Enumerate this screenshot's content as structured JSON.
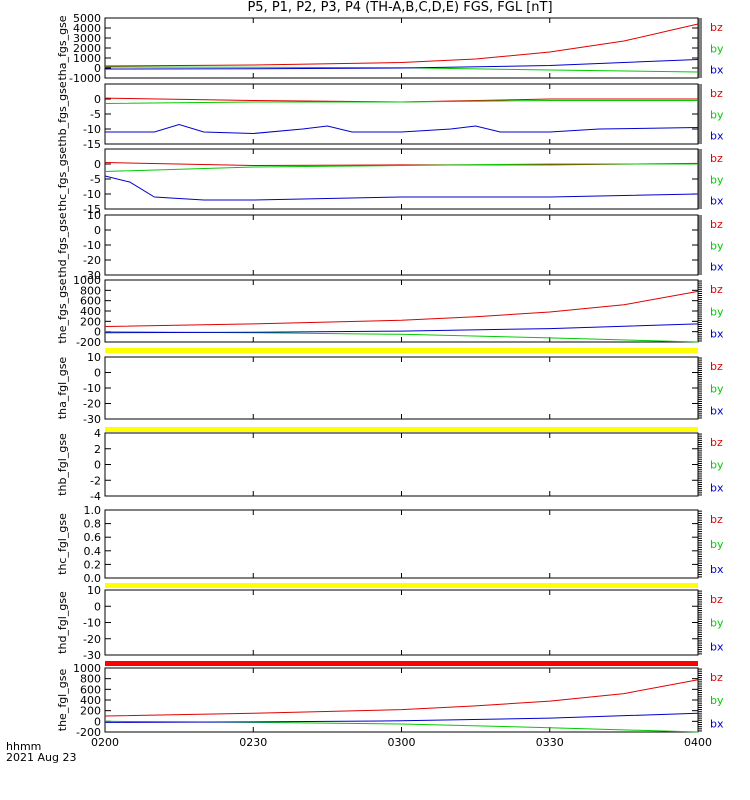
{
  "title": "P5, P1, P2, P3, P4 (TH-A,B,C,D,E) FGS, FGL [nT]",
  "x_unit_label": "hhmm",
  "date_label": "2021 Aug 23",
  "colors": {
    "bz": "#e00000",
    "by": "#00cc00",
    "bx": "#0000cc",
    "flag_yellow": "#ffff00",
    "flag_red": "#ff0000"
  },
  "chart_data": {
    "type": "line",
    "x_range": [
      "0200",
      "0400"
    ],
    "x_ticks": [
      "0200",
      "0230",
      "0300",
      "0330",
      "0400"
    ],
    "panels": [
      {
        "ylabel": "tha_fgs_gse",
        "ylim": [
          -1000,
          5000
        ],
        "yticks": [
          "-1000",
          "0",
          "1000",
          "2000",
          "3000",
          "4000",
          "5000"
        ],
        "series": [
          {
            "name": "bz",
            "x": [
              "0200",
              "0230",
              "0300",
              "0315",
              "0330",
              "0345",
              "0400"
            ],
            "y": [
              200,
              300,
              550,
              900,
              1600,
              2700,
              4400
            ]
          },
          {
            "name": "by",
            "x": [
              "0200",
              "0230",
              "0300",
              "0330",
              "0400"
            ],
            "y": [
              100,
              80,
              20,
              -200,
              -400
            ]
          },
          {
            "name": "bx",
            "x": [
              "0200",
              "0230",
              "0300",
              "0330",
              "0400"
            ],
            "y": [
              -100,
              -80,
              0,
              250,
              850
            ]
          }
        ]
      },
      {
        "ylabel": "thb_fgs_gse",
        "ylim": [
          -15,
          5
        ],
        "yticks": [
          "-15",
          "-10",
          "-5",
          "0"
        ],
        "series": [
          {
            "name": "bz",
            "x": [
              "0200",
              "0230",
              "0300",
              "0330",
              "0400"
            ],
            "y": [
              0.3,
              -0.5,
              -1,
              0,
              0
            ]
          },
          {
            "name": "by",
            "x": [
              "0200",
              "0230",
              "0300",
              "0330",
              "0400"
            ],
            "y": [
              -1.5,
              -1,
              -1,
              -0.5,
              -0.5
            ]
          },
          {
            "name": "bx",
            "x": [
              "0200",
              "0210",
              "0215",
              "0220",
              "0230",
              "0240",
              "0245",
              "0250",
              "0300",
              "0310",
              "0315",
              "0320",
              "0330",
              "0340",
              "0400"
            ],
            "y": [
              -11,
              -11,
              -8.5,
              -11,
              -11.5,
              -10,
              -9,
              -11,
              -11,
              -10,
              -9,
              -11,
              -11,
              -10,
              -9.5
            ]
          }
        ]
      },
      {
        "ylabel": "thc_fgs_gse",
        "ylim": [
          -15,
          5
        ],
        "yticks": [
          "-15",
          "-10",
          "-5",
          "0"
        ],
        "series": [
          {
            "name": "bz",
            "x": [
              "0200",
              "0230",
              "0300",
              "0330",
              "0400"
            ],
            "y": [
              0.5,
              -0.5,
              -0.3,
              -0.3,
              0.2
            ]
          },
          {
            "name": "by",
            "x": [
              "0200",
              "0230",
              "0300",
              "0330",
              "0400"
            ],
            "y": [
              -2.5,
              -1,
              -0.5,
              0,
              0
            ]
          },
          {
            "name": "bx",
            "x": [
              "0200",
              "0205",
              "0210",
              "0220",
              "0230",
              "0300",
              "0330",
              "0400"
            ],
            "y": [
              -4,
              -6,
              -11,
              -12,
              -12,
              -11,
              -11,
              -10
            ]
          }
        ]
      },
      {
        "ylabel": "thd_fgs_gse",
        "ylim": [
          -30,
          10
        ],
        "yticks": [
          "-30",
          "-20",
          "-10",
          "0",
          "10"
        ],
        "series": []
      },
      {
        "ylabel": "the_fgs_gse",
        "ylim": [
          -200,
          1000
        ],
        "yticks": [
          "-200",
          "0",
          "200",
          "400",
          "600",
          "800",
          "1000"
        ],
        "series": [
          {
            "name": "bz",
            "x": [
              "0200",
              "0230",
              "0300",
              "0315",
              "0330",
              "0345",
              "0400"
            ],
            "y": [
              100,
              150,
              220,
              290,
              380,
              520,
              780
            ]
          },
          {
            "name": "by",
            "x": [
              "0200",
              "0230",
              "0300",
              "0330",
              "0400"
            ],
            "y": [
              0,
              -20,
              -50,
              -120,
              -200
            ]
          },
          {
            "name": "bx",
            "x": [
              "0200",
              "0230",
              "0300",
              "0330",
              "0400"
            ],
            "y": [
              -20,
              -10,
              10,
              60,
              150
            ]
          }
        ]
      },
      {
        "ylabel": "tha_fgl_gse",
        "ylim": [
          -30,
          10
        ],
        "yticks": [
          "-30",
          "-20",
          "-10",
          "0",
          "10"
        ],
        "series": []
      },
      {
        "ylabel": "thb_fgl_gse",
        "ylim": [
          -4,
          4
        ],
        "yticks": [
          "-4",
          "-2",
          "0",
          "2",
          "4"
        ],
        "series": []
      },
      {
        "ylabel": "thc_fgl_gse",
        "ylim": [
          0,
          1
        ],
        "yticks": [
          "0.0",
          "0.2",
          "0.4",
          "0.6",
          "0.8",
          "1.0"
        ],
        "series": []
      },
      {
        "ylabel": "thd_fgl_gse",
        "ylim": [
          -30,
          10
        ],
        "yticks": [
          "-30",
          "-20",
          "-10",
          "0",
          "10"
        ],
        "series": []
      },
      {
        "ylabel": "the_fgl_gse",
        "ylim": [
          -200,
          1000
        ],
        "yticks": [
          "-200",
          "0",
          "200",
          "400",
          "600",
          "800",
          "1000"
        ],
        "series": [
          {
            "name": "bz",
            "x": [
              "0200",
              "0230",
              "0300",
              "0315",
              "0330",
              "0345",
              "0400"
            ],
            "y": [
              100,
              150,
              220,
              290,
              380,
              520,
              780
            ]
          },
          {
            "name": "by",
            "x": [
              "0200",
              "0230",
              "0300",
              "0330",
              "0400"
            ],
            "y": [
              0,
              -20,
              -50,
              -120,
              -200
            ]
          },
          {
            "name": "bx",
            "x": [
              "0200",
              "0230",
              "0300",
              "0330",
              "0400"
            ],
            "y": [
              -20,
              -10,
              10,
              60,
              150
            ]
          }
        ]
      }
    ],
    "legend_labels": [
      "bz",
      "by",
      "bx"
    ],
    "legend_placement": "right",
    "flag_bars": [
      {
        "after_panel": "the_fgs_gse",
        "color": "yellow"
      },
      {
        "after_panel": "tha_fgl_gse",
        "color": "yellow"
      },
      {
        "after_panel": "thc_fgl_gse",
        "color": "yellow"
      },
      {
        "after_panel": "thd_fgl_gse",
        "color": "red"
      }
    ]
  }
}
